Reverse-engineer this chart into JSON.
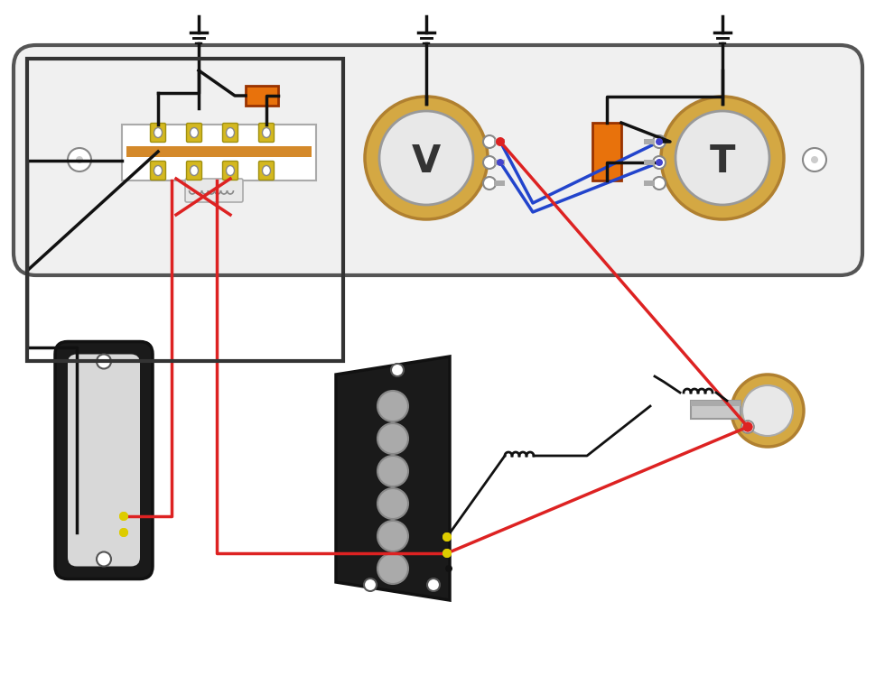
{
  "bg_color": "#ffffff",
  "plate_color": "#f0f0f0",
  "plate_stroke": "#555555",
  "pot_body_color": "#d4a843",
  "pot_knob_color": "#e8e8e8",
  "orange_cap_color": "#e8720c",
  "neck_pickup_body": "#1a1a1a",
  "bridge_pickup_body": "#1a1a1a",
  "bridge_poles_color": "#aaaaaa",
  "jack_body_color": "#d4a843",
  "wire_red": "#dd2222",
  "wire_blue": "#2244cc",
  "wire_black": "#111111",
  "wire_yellow": "#ddcc00",
  "switch_gold": "#d4b820",
  "switch_white": "#f0f0f0",
  "switch_orange_strip": "#d4892a",
  "lug_gray": "#aaaaaa"
}
